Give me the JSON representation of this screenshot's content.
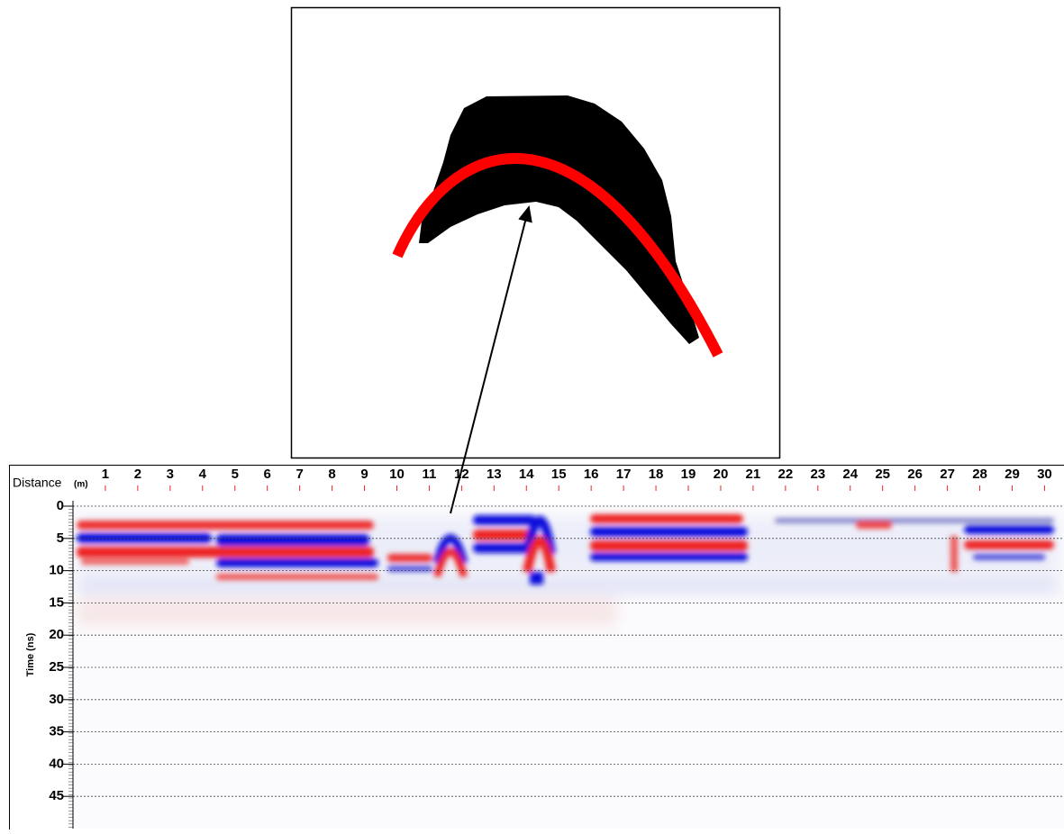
{
  "chart_data": {
    "type": "radargram",
    "x_label": "Distance",
    "x_unit": "(m)",
    "y_label": "Time (ns)",
    "xlim": [
      0,
      30.6
    ],
    "ylim": [
      0,
      50
    ],
    "xticks": [
      1,
      2,
      3,
      4,
      5,
      6,
      7,
      8,
      9,
      10,
      11,
      12,
      13,
      14,
      15,
      16,
      17,
      18,
      19,
      20,
      21,
      22,
      23,
      24,
      25,
      26,
      27,
      28,
      29,
      30
    ],
    "yticks": [
      0,
      5,
      10,
      15,
      20,
      25,
      30,
      35,
      40,
      45
    ],
    "grid": true
  }
}
